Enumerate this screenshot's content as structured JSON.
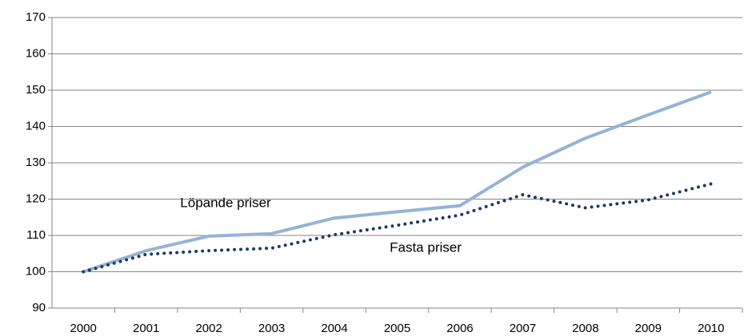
{
  "chart_data": {
    "type": "line",
    "categories": [
      "2000",
      "2001",
      "2002",
      "2003",
      "2004",
      "2005",
      "2006",
      "2007",
      "2008",
      "2009",
      "2010"
    ],
    "series": [
      {
        "name": "Löpande priser",
        "color": "#95b3d7",
        "style": "solid",
        "values": [
          100,
          105.8,
          109.8,
          110.5,
          114.8,
          116.5,
          118.2,
          128.8,
          136.8,
          143.2,
          149.5
        ]
      },
      {
        "name": "Fasta priser",
        "color": "#1f3864",
        "style": "dotted",
        "values": [
          100,
          104.8,
          105.8,
          106.5,
          110.2,
          112.8,
          115.6,
          121.2,
          117.6,
          119.8,
          124.2
        ]
      }
    ],
    "ylim": [
      90,
      170
    ],
    "yticks": [
      90,
      100,
      110,
      120,
      130,
      140,
      150,
      160,
      170
    ],
    "grid": true
  }
}
